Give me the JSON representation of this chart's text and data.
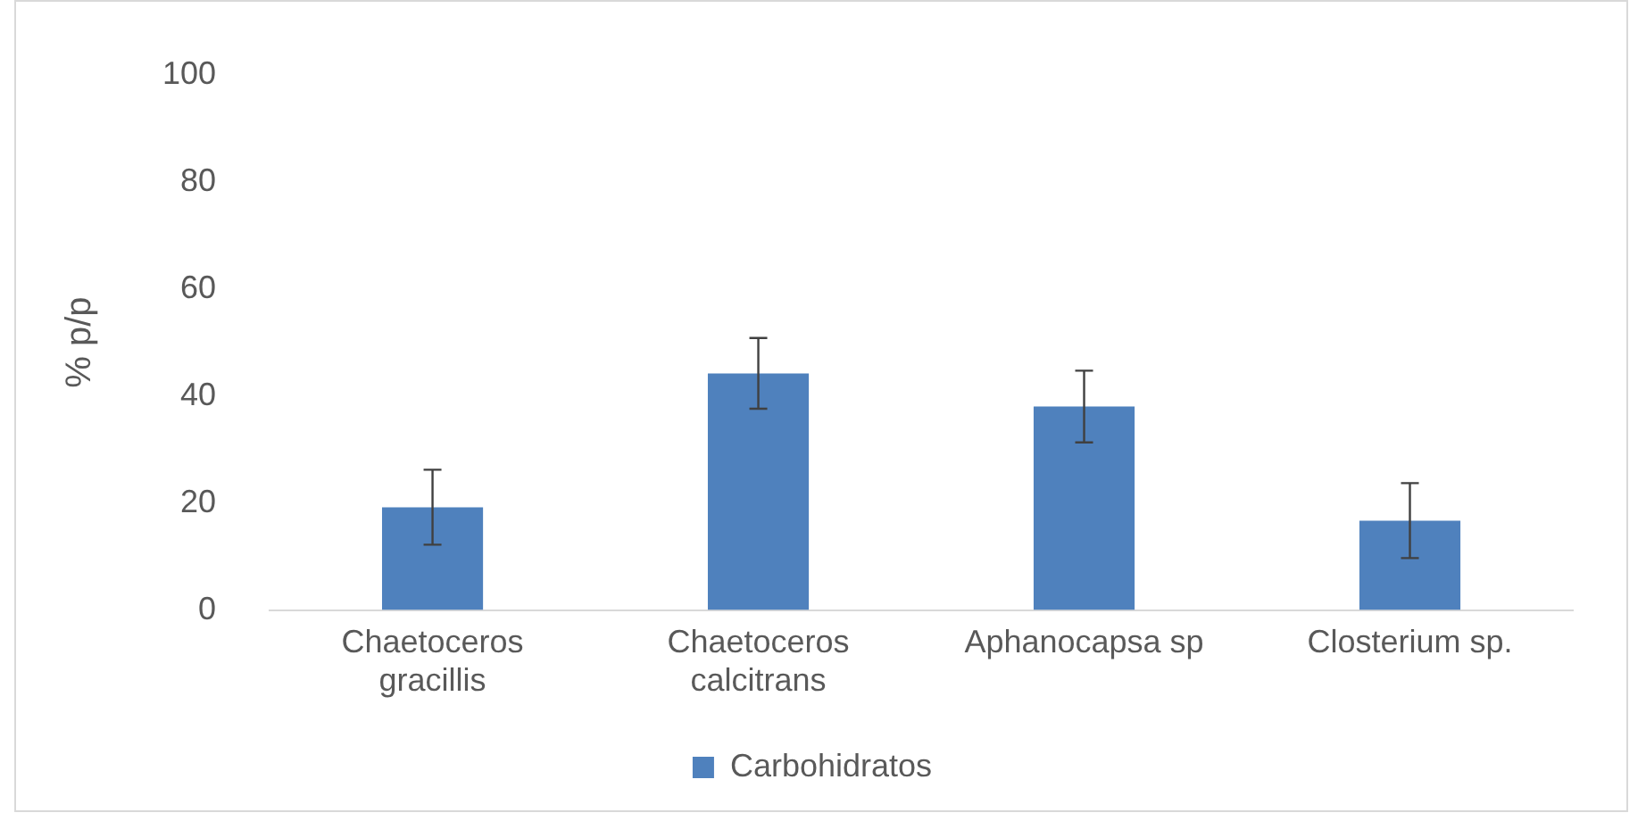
{
  "chart_data": {
    "type": "bar",
    "ylabel": "% p/p",
    "categories": [
      "Chaetoceros gracillis",
      "Chaetoceros calcitrans",
      "Aphanocapsa sp",
      "Closterium sp."
    ],
    "series": [
      {
        "name": "Carbohidratos",
        "color": "#4f81bd",
        "values": [
          19.2,
          44.2,
          38.0,
          16.7
        ],
        "errors": [
          7,
          6.6,
          6.7,
          7
        ]
      }
    ],
    "ylim": [
      0,
      100
    ],
    "yticks": [
      0,
      20,
      40,
      60,
      80,
      100
    ],
    "grid": false,
    "legend": "bottom"
  }
}
